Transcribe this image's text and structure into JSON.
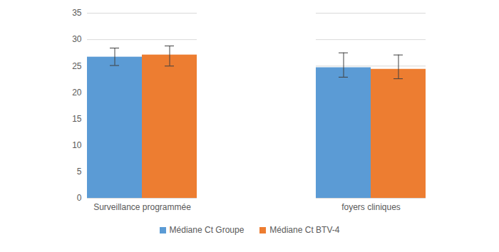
{
  "chart_data": {
    "type": "bar",
    "categories": [
      "Surveillance programmée",
      "foyers cliniques"
    ],
    "series": [
      {
        "name": "Médiane Ct Groupe",
        "color": "#5b9bd5",
        "values": [
          26.7,
          24.7
        ],
        "error_low": [
          25.1,
          22.9
        ],
        "error_high": [
          28.4,
          27.5
        ]
      },
      {
        "name": "Médiane Ct BTV-4",
        "color": "#ed7d31",
        "values": [
          27.1,
          24.4
        ],
        "error_low": [
          25.0,
          22.6
        ],
        "error_high": [
          28.8,
          27.1
        ]
      }
    ],
    "ylim": [
      0,
      35
    ],
    "yticks": [
      0,
      5,
      10,
      15,
      20,
      25,
      30,
      35
    ],
    "grid": true,
    "legend": "bottom"
  }
}
